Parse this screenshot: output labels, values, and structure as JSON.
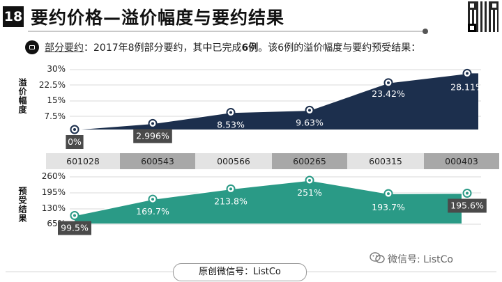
{
  "header": {
    "number": "18",
    "title": "要约价格—溢价幅度与要约结果"
  },
  "intro": {
    "label": "部分要约",
    "text_1": "：2017年8例部分要约，其中已完成",
    "bold": "6例",
    "text_2": "。该6例的溢价幅度与要约预受结果："
  },
  "footer": {
    "label": "原创微信号：ListCo"
  },
  "watermark": {
    "label": "微信号: ListCo"
  },
  "colors": {
    "premium_fill": "#1c2f4d",
    "acceptance_fill": "#2a9a86",
    "code_light": "#e3e3e3",
    "code_dark": "#a8a8a8"
  },
  "chart_data": [
    {
      "type": "area",
      "ylabel": "溢价幅度",
      "categories": [
        "601028",
        "600543",
        "000566",
        "600265",
        "600315",
        "000403"
      ],
      "values": [
        0,
        2.996,
        8.53,
        9.63,
        23.42,
        28.11
      ],
      "value_labels": [
        "0%",
        "2.996%",
        "8.53%",
        "9.63%",
        "23.42%",
        "28.11%"
      ],
      "yticks": [
        "30%",
        "22.5%",
        "15%",
        "7.5%"
      ],
      "ylim": [
        0,
        30
      ]
    },
    {
      "type": "area",
      "ylabel": "预受结果",
      "categories": [
        "601028",
        "600543",
        "000566",
        "600265",
        "600315",
        "000403"
      ],
      "values": [
        99.5,
        169.7,
        213.8,
        251,
        193.7,
        195.6
      ],
      "value_labels": [
        "99.5%",
        "169.7%",
        "213.8%",
        "251%",
        "193.7%",
        "195.6%"
      ],
      "yticks": [
        "260%",
        "195%",
        "130%",
        "65%"
      ],
      "ylim": [
        65,
        260
      ]
    }
  ]
}
